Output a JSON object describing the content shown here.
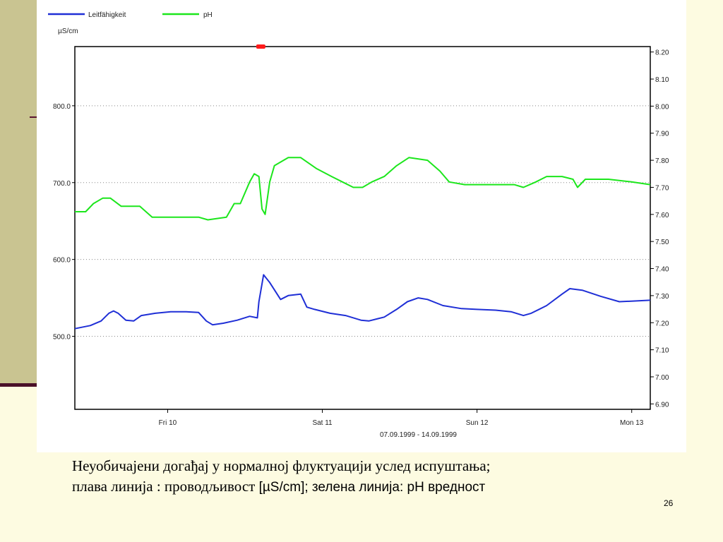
{
  "slide": {
    "caption_line1": "Неуобичајени догађај у нормалној флуктуацији услед испуштања;",
    "caption_line2_a": "плава линија : проводљивост ",
    "caption_line2_b": "[µS/cm]; зелена линија:  pH вредност",
    "slide_number": "26"
  },
  "colors": {
    "conductivity": "#1f2fd6",
    "ph": "#1ce61c",
    "marker": "#ff1a1a"
  },
  "chart_data": {
    "type": "line",
    "title": "",
    "left_unit": "µS/cm",
    "x_caption": "07.09.1999 - 14.09.1999",
    "x_ticks": [
      "Fri 10",
      "Sat 11",
      "Sun 12",
      "Mon 13"
    ],
    "x_tick_positions_days": [
      0.6,
      1.6,
      2.6,
      3.6
    ],
    "x_range_days": [
      0,
      3.72
    ],
    "y_left": {
      "range": [
        405,
        877
      ],
      "ticks": [
        "500.0",
        "600.0",
        "700.0",
        "800.0"
      ],
      "tick_values": [
        500,
        600,
        700,
        800
      ]
    },
    "y_right": {
      "range": [
        6.88,
        8.22
      ],
      "ticks": [
        "6.90",
        "7.00",
        "7.10",
        "7.20",
        "7.30",
        "7.40",
        "7.50",
        "7.60",
        "7.70",
        "7.80",
        "7.90",
        "8.00",
        "8.10",
        "8.20"
      ],
      "tick_values": [
        6.9,
        7.0,
        7.1,
        7.2,
        7.3,
        7.4,
        7.5,
        7.6,
        7.7,
        7.8,
        7.9,
        8.0,
        8.1,
        8.2
      ]
    },
    "grid": true,
    "legend_position": "top-left",
    "series": [
      {
        "name": "Leitfähigkeit",
        "axis": "left",
        "color": "#1f2fd6",
        "points": [
          [
            0.0,
            510
          ],
          [
            0.1,
            514
          ],
          [
            0.17,
            520
          ],
          [
            0.22,
            530
          ],
          [
            0.25,
            533
          ],
          [
            0.28,
            530
          ],
          [
            0.33,
            521
          ],
          [
            0.38,
            520
          ],
          [
            0.43,
            527
          ],
          [
            0.52,
            530
          ],
          [
            0.62,
            532
          ],
          [
            0.72,
            532
          ],
          [
            0.8,
            531
          ],
          [
            0.85,
            520
          ],
          [
            0.89,
            515
          ],
          [
            0.96,
            517
          ],
          [
            1.05,
            521
          ],
          [
            1.13,
            526
          ],
          [
            1.18,
            524
          ],
          [
            1.19,
            545
          ],
          [
            1.22,
            580
          ],
          [
            1.26,
            570
          ],
          [
            1.33,
            548
          ],
          [
            1.38,
            553
          ],
          [
            1.46,
            555
          ],
          [
            1.5,
            538
          ],
          [
            1.55,
            535
          ],
          [
            1.65,
            530
          ],
          [
            1.75,
            527
          ],
          [
            1.85,
            521
          ],
          [
            1.9,
            520
          ],
          [
            1.96,
            523
          ],
          [
            2.0,
            525
          ],
          [
            2.08,
            535
          ],
          [
            2.15,
            545
          ],
          [
            2.22,
            550
          ],
          [
            2.28,
            548
          ],
          [
            2.38,
            540
          ],
          [
            2.5,
            536
          ],
          [
            2.6,
            535
          ],
          [
            2.72,
            534
          ],
          [
            2.82,
            532
          ],
          [
            2.9,
            527
          ],
          [
            2.95,
            530
          ],
          [
            3.05,
            540
          ],
          [
            3.15,
            555
          ],
          [
            3.2,
            562
          ],
          [
            3.28,
            560
          ],
          [
            3.4,
            552
          ],
          [
            3.52,
            545
          ],
          [
            3.62,
            546
          ],
          [
            3.72,
            547
          ]
        ]
      },
      {
        "name": "pH",
        "axis": "right",
        "color": "#1ce61c",
        "points": [
          [
            0.0,
            7.61
          ],
          [
            0.07,
            7.61
          ],
          [
            0.12,
            7.64
          ],
          [
            0.18,
            7.66
          ],
          [
            0.23,
            7.66
          ],
          [
            0.3,
            7.63
          ],
          [
            0.36,
            7.63
          ],
          [
            0.42,
            7.63
          ],
          [
            0.5,
            7.59
          ],
          [
            0.6,
            7.59
          ],
          [
            0.7,
            7.59
          ],
          [
            0.8,
            7.59
          ],
          [
            0.86,
            7.58
          ],
          [
            0.98,
            7.59
          ],
          [
            1.03,
            7.64
          ],
          [
            1.07,
            7.64
          ],
          [
            1.13,
            7.72
          ],
          [
            1.16,
            7.75
          ],
          [
            1.19,
            7.74
          ],
          [
            1.21,
            7.62
          ],
          [
            1.23,
            7.6
          ],
          [
            1.26,
            7.72
          ],
          [
            1.29,
            7.78
          ],
          [
            1.38,
            7.81
          ],
          [
            1.46,
            7.81
          ],
          [
            1.56,
            7.77
          ],
          [
            1.66,
            7.74
          ],
          [
            1.73,
            7.72
          ],
          [
            1.8,
            7.7
          ],
          [
            1.86,
            7.7
          ],
          [
            1.92,
            7.72
          ],
          [
            2.0,
            7.74
          ],
          [
            2.08,
            7.78
          ],
          [
            2.16,
            7.81
          ],
          [
            2.28,
            7.8
          ],
          [
            2.36,
            7.76
          ],
          [
            2.42,
            7.72
          ],
          [
            2.52,
            7.71
          ],
          [
            2.6,
            7.71
          ],
          [
            2.75,
            7.71
          ],
          [
            2.84,
            7.71
          ],
          [
            2.9,
            7.7
          ],
          [
            2.98,
            7.72
          ],
          [
            3.05,
            7.74
          ],
          [
            3.15,
            7.74
          ],
          [
            3.22,
            7.73
          ],
          [
            3.25,
            7.7
          ],
          [
            3.3,
            7.73
          ],
          [
            3.45,
            7.73
          ],
          [
            3.6,
            7.72
          ],
          [
            3.72,
            7.71
          ]
        ]
      }
    ],
    "event_marker": {
      "x_day": 1.2
    }
  }
}
